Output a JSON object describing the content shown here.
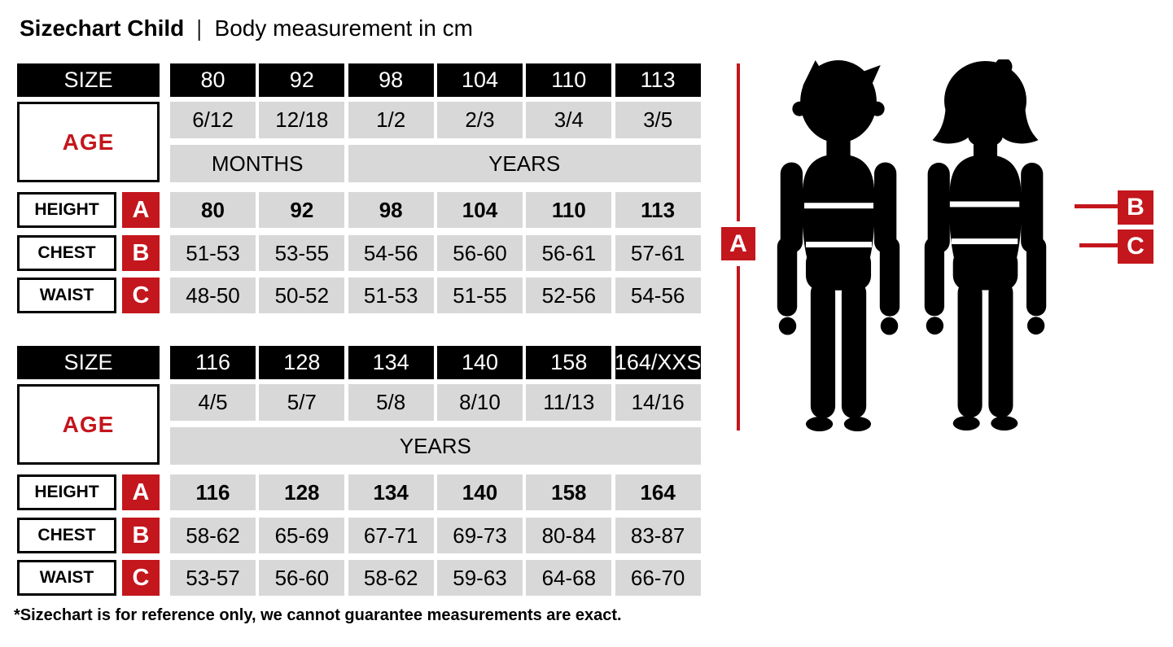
{
  "title": {
    "main": "Sizechart Child",
    "separator": "|",
    "subtitle": "Body measurement in cm"
  },
  "footnote": "*Sizechart is for reference only, we cannot guarantee measurements are exact.",
  "colors": {
    "red": "#c4161d",
    "cell_grey": "#d8d8d8",
    "black": "#000000"
  },
  "tables": [
    {
      "header": {
        "label": "SIZE",
        "values": [
          "80",
          "92",
          "98",
          "104",
          "110",
          "113"
        ]
      },
      "age": {
        "label": "AGE",
        "values": [
          "6/12",
          "12/18",
          "1/2",
          "2/3",
          "3/4",
          "3/5"
        ],
        "units": [
          {
            "label": "MONTHS",
            "span": 2
          },
          {
            "label": "YEARS",
            "span": 4
          }
        ]
      },
      "measurements": [
        {
          "label": "HEIGHT",
          "marker": "A",
          "bold": true,
          "values": [
            "80",
            "92",
            "98",
            "104",
            "110",
            "113"
          ]
        },
        {
          "label": "CHEST",
          "marker": "B",
          "bold": false,
          "values": [
            "51-53",
            "53-55",
            "54-56",
            "56-60",
            "56-61",
            "57-61"
          ]
        },
        {
          "label": "WAIST",
          "marker": "C",
          "bold": false,
          "values": [
            "48-50",
            "50-52",
            "51-53",
            "51-55",
            "52-56",
            "54-56"
          ]
        }
      ]
    },
    {
      "header": {
        "label": "SIZE",
        "values": [
          "116",
          "128",
          "134",
          "140",
          "158",
          "164/XXS"
        ]
      },
      "age": {
        "label": "AGE",
        "values": [
          "4/5",
          "5/7",
          "5/8",
          "8/10",
          "11/13",
          "14/16"
        ],
        "units": [
          {
            "label": "YEARS",
            "span": 6
          }
        ]
      },
      "measurements": [
        {
          "label": "HEIGHT",
          "marker": "A",
          "bold": true,
          "values": [
            "116",
            "128",
            "134",
            "140",
            "158",
            "164"
          ]
        },
        {
          "label": "CHEST",
          "marker": "B",
          "bold": false,
          "values": [
            "58-62",
            "65-69",
            "67-71",
            "69-73",
            "80-84",
            "83-87"
          ]
        },
        {
          "label": "WAIST",
          "marker": "C",
          "bold": false,
          "values": [
            "53-57",
            "56-60",
            "58-62",
            "59-63",
            "64-68",
            "66-70"
          ]
        }
      ]
    }
  ],
  "figure": {
    "marker_a": "A",
    "marker_b": "B",
    "marker_c": "C"
  }
}
